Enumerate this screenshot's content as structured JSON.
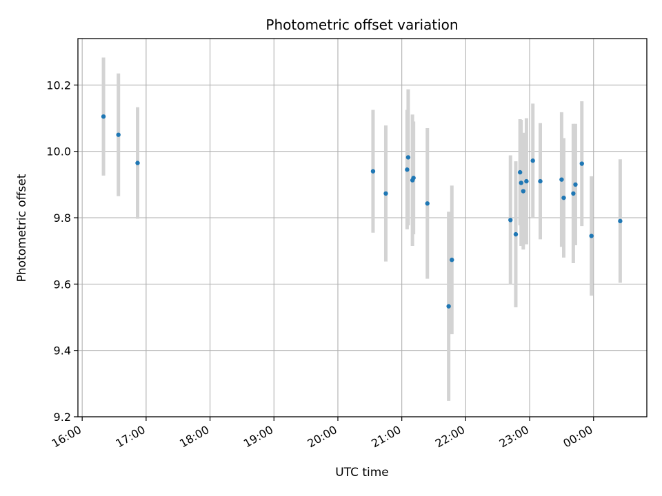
{
  "chart_data": {
    "type": "scatter",
    "title": "Photometric offset variation",
    "xlabel": "UTC time",
    "ylabel": "Photometric offset",
    "xlim": [
      "15:56",
      "00:50"
    ],
    "ylim": [
      9.2,
      10.34
    ],
    "x_ticks": [
      "16:00",
      "17:00",
      "18:00",
      "19:00",
      "20:00",
      "21:00",
      "22:00",
      "23:00",
      "00:00"
    ],
    "y_ticks": [
      "9.2",
      "9.4",
      "9.6",
      "9.8",
      "10.0",
      "10.2"
    ],
    "grid": true,
    "marker_color": "#1f77b4",
    "errorbar_color": "#d3d3d3",
    "points": [
      {
        "x": "16:20",
        "y": 10.105,
        "err": 0.178
      },
      {
        "x": "16:34",
        "y": 10.05,
        "err": 0.185
      },
      {
        "x": "16:52",
        "y": 9.965,
        "err": 0.168
      },
      {
        "x": "20:33",
        "y": 9.94,
        "err": 0.185
      },
      {
        "x": "20:45",
        "y": 9.873,
        "err": 0.205
      },
      {
        "x": "21:05",
        "y": 9.945,
        "err": 0.18
      },
      {
        "x": "21:06",
        "y": 9.982,
        "err": 0.205
      },
      {
        "x": "21:10",
        "y": 9.913,
        "err": 0.198
      },
      {
        "x": "21:11",
        "y": 9.92,
        "err": 0.17
      },
      {
        "x": "21:24",
        "y": 9.843,
        "err": 0.227
      },
      {
        "x": "21:44",
        "y": 9.533,
        "err": 0.285
      },
      {
        "x": "21:47",
        "y": 9.673,
        "err": 0.224
      },
      {
        "x": "22:42",
        "y": 9.793,
        "err": 0.195
      },
      {
        "x": "22:47",
        "y": 9.75,
        "err": 0.22
      },
      {
        "x": "22:51",
        "y": 9.937,
        "err": 0.16
      },
      {
        "x": "22:52",
        "y": 9.905,
        "err": 0.19
      },
      {
        "x": "22:54",
        "y": 9.88,
        "err": 0.176
      },
      {
        "x": "22:57",
        "y": 9.91,
        "err": 0.19
      },
      {
        "x": "23:03",
        "y": 9.972,
        "err": 0.172
      },
      {
        "x": "23:10",
        "y": 9.91,
        "err": 0.175
      },
      {
        "x": "23:30",
        "y": 9.915,
        "err": 0.203
      },
      {
        "x": "23:32",
        "y": 9.86,
        "err": 0.18
      },
      {
        "x": "23:41",
        "y": 9.873,
        "err": 0.21
      },
      {
        "x": "23:43",
        "y": 9.9,
        "err": 0.183
      },
      {
        "x": "23:49",
        "y": 9.963,
        "err": 0.188
      },
      {
        "x": "23:58",
        "y": 9.745,
        "err": 0.18
      },
      {
        "x": "00:25",
        "y": 9.79,
        "err": 0.186
      }
    ]
  }
}
